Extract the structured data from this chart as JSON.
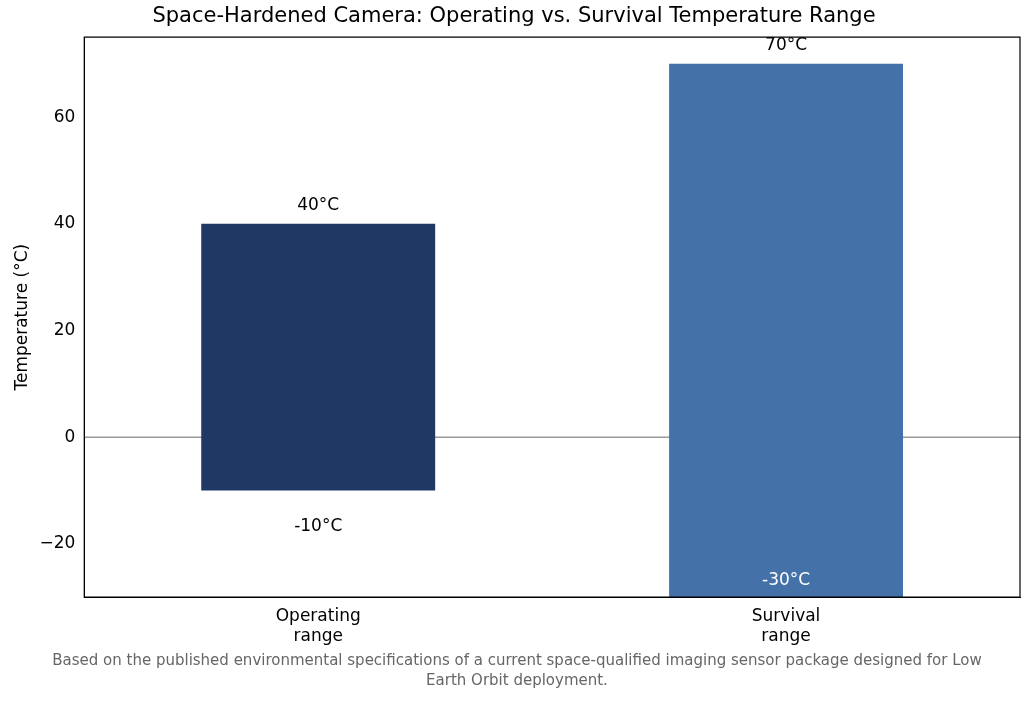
{
  "chart_data": {
    "type": "bar",
    "title": "Space-Hardened Camera: Operating vs. Survival Temperature Range",
    "ylabel": "Temperature (°C)",
    "categories": [
      "Operating range",
      "Survival range"
    ],
    "base": [
      -10,
      -30
    ],
    "values": [
      50,
      100
    ],
    "colors": [
      "#1f3864",
      "#4472a8"
    ],
    "ylim": [
      -30,
      75
    ],
    "yticks": [
      {
        "value": -20,
        "label": "−20"
      },
      0,
      20,
      40,
      60
    ],
    "grid": false,
    "legend": false,
    "ref_lines": [
      {
        "axis": "y",
        "value": 0,
        "color": "#999999"
      }
    ],
    "annotations": [
      {
        "text": "40°C",
        "x": "Operating range",
        "y": 40
      },
      {
        "text": "-10°C",
        "x": "Operating range",
        "y": -10
      },
      {
        "text": "70°C",
        "x": "Survival range",
        "y": 70
      },
      {
        "text": "-30°C",
        "x": "Survival range",
        "y": -30
      },
      "Based on the published environmental specifications of a current space-qualified imaging sensor package designed for Low Earth Orbit deployment."
    ]
  }
}
